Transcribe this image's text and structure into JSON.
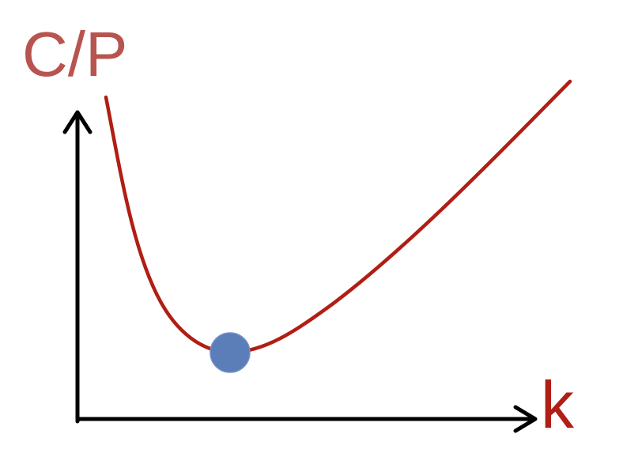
{
  "diagram": {
    "y_axis_label": "C/P",
    "x_axis_label": "k"
  },
  "colors": {
    "y_label": "#B85450",
    "x_label": "#B01E14",
    "curve": "#B01E14",
    "axes": "#000000",
    "minimum_point": "#5B7DB8"
  }
}
